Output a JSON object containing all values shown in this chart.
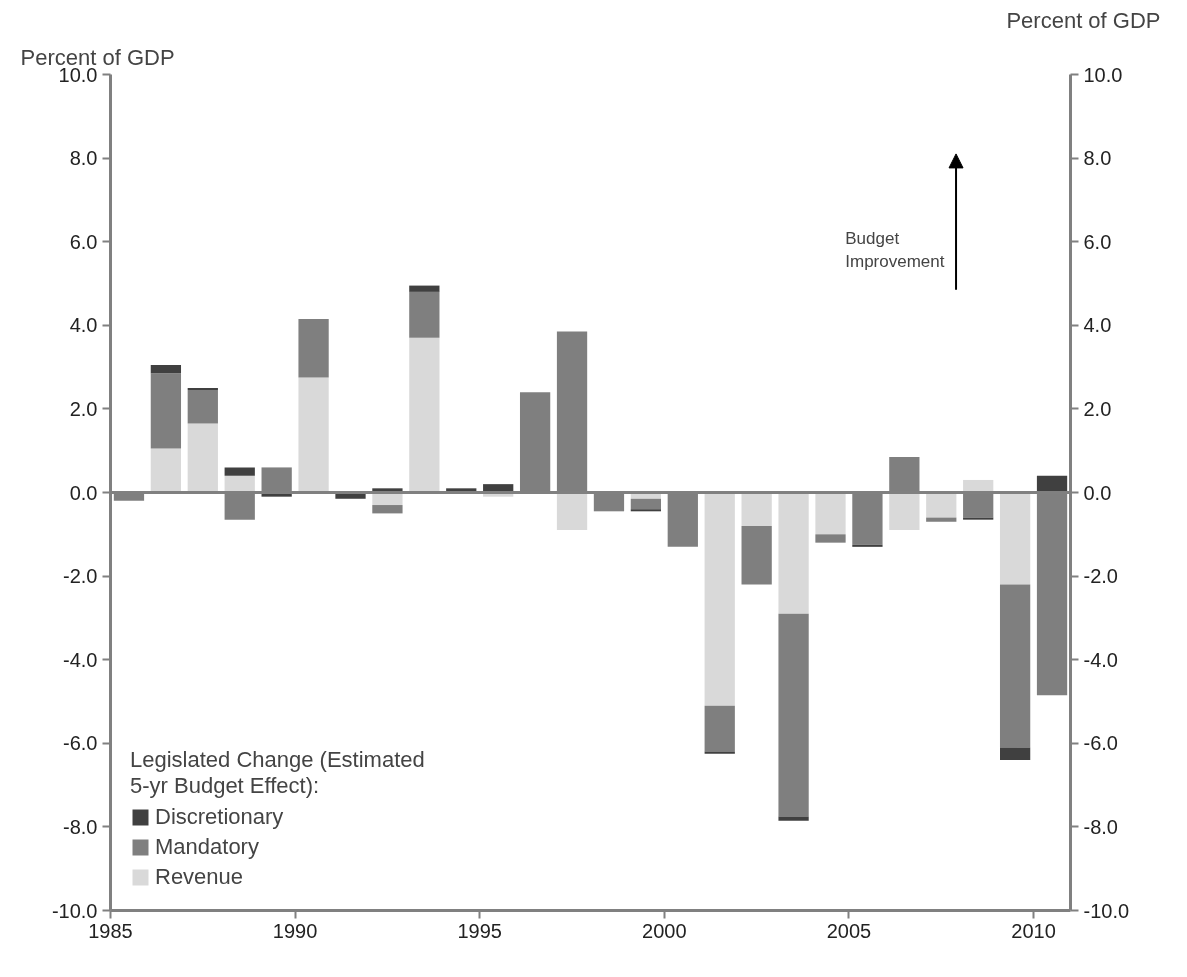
{
  "chart_data": {
    "type": "bar",
    "stacked": true,
    "ylabel": "Percent of GDP",
    "y2label": "Percent of GDP",
    "legend_title": "Legislated Change (Estimated 5-yr Budget Effect):",
    "annotations": [
      "Budget Improvement"
    ],
    "x": [
      1985.5,
      1986.5,
      1987.5,
      1988.5,
      1989.5,
      1990.5,
      1991.5,
      1992.5,
      1993.5,
      1994.5,
      1995.5,
      1996.5,
      1997.5,
      1998.5,
      1999.5,
      2000.5,
      2001.5,
      2002.5,
      2003.5,
      2004.5,
      2005.5,
      2006.5,
      2007.5,
      2008.5,
      2009.5,
      2010.5
    ],
    "series": [
      {
        "name": "Revenue",
        "color": "#d9d9d9",
        "values": [
          0,
          1.05,
          1.65,
          0.4,
          0,
          2.75,
          0,
          -0.3,
          3.7,
          0,
          -0.1,
          0,
          -0.9,
          0,
          -0.15,
          0,
          -5.1,
          -0.8,
          -2.9,
          -1.0,
          0,
          -0.9,
          -0.6,
          0.3,
          -2.2,
          0
        ]
      },
      {
        "name": "Mandatory",
        "color": "#7f7f7f",
        "values": [
          -0.2,
          1.8,
          0.8,
          -0.65,
          0.6,
          1.4,
          0,
          -0.2,
          1.1,
          0,
          0,
          2.4,
          3.85,
          -0.45,
          -0.25,
          -1.3,
          -1.1,
          -1.4,
          -4.85,
          -0.2,
          -1.25,
          0.85,
          -0.1,
          -0.6,
          -3.9,
          -4.85
        ]
      },
      {
        "name": "Discretionary",
        "color": "#404040",
        "values": [
          0,
          0.2,
          0.05,
          0.2,
          -0.1,
          0,
          -0.15,
          0.1,
          0.15,
          0.1,
          0.2,
          0,
          0,
          0,
          -0.05,
          0,
          -0.05,
          0,
          -0.1,
          0,
          -0.05,
          0,
          0,
          -0.05,
          -0.3,
          0.4
        ]
      }
    ],
    "xlim": [
      1985,
      2011
    ],
    "xticks": [
      1985,
      1990,
      1995,
      2000,
      2005,
      2010
    ],
    "ylim": [
      -10,
      10
    ],
    "yticks": [
      {
        "value": -10,
        "label": "-10.0"
      },
      {
        "value": -8,
        "label": "-8.0"
      },
      {
        "value": -6,
        "label": "-6.0"
      },
      {
        "value": -4,
        "label": "-4.0"
      },
      {
        "value": -2,
        "label": "-2.0"
      },
      {
        "value": 0,
        "label": "0.0"
      },
      {
        "value": 2,
        "label": "2.0"
      },
      {
        "value": 4,
        "label": "4.0"
      },
      {
        "value": 6,
        "label": "6.0"
      },
      {
        "value": 8,
        "label": "8.0"
      },
      {
        "value": 10,
        "label": "10.0"
      }
    ],
    "y2lim": [
      -10,
      10
    ],
    "y2ticks": [
      {
        "value": -10,
        "label": "-10.0"
      },
      {
        "value": -8,
        "label": "-8.0"
      },
      {
        "value": -6,
        "label": "-6.0"
      },
      {
        "value": -4,
        "label": "-4.0"
      },
      {
        "value": -2,
        "label": "-2.0"
      },
      {
        "value": 0,
        "label": "0.0"
      },
      {
        "value": 2,
        "label": "2.0"
      },
      {
        "value": 4,
        "label": "4.0"
      },
      {
        "value": 6,
        "label": "6.0"
      },
      {
        "value": 8,
        "label": "8.0"
      },
      {
        "value": 10,
        "label": "10.0"
      }
    ],
    "ref_lines": [
      {
        "axis": "y",
        "value": 0,
        "color": "#808080"
      }
    ],
    "legend": "bottom left",
    "grid": false
  }
}
